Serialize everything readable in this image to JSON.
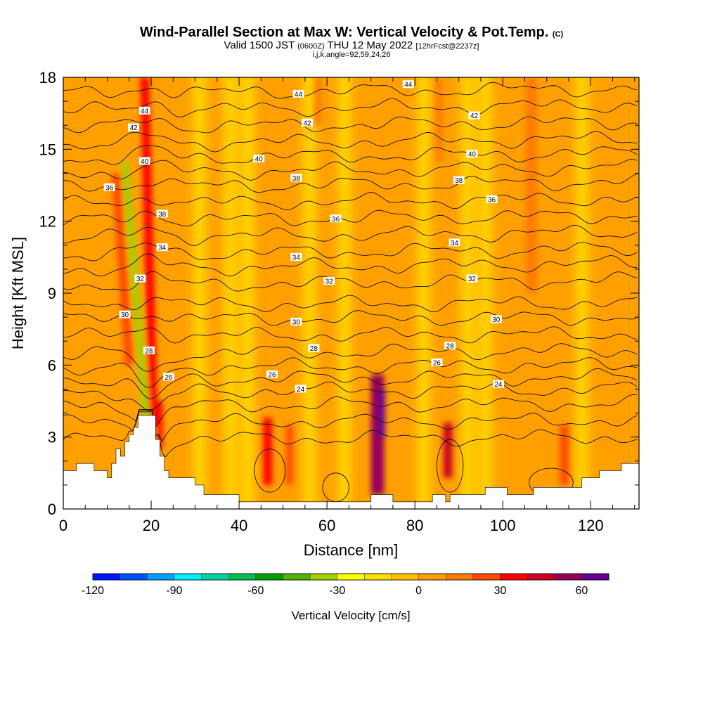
{
  "chart_data": {
    "type": "heatmap",
    "title": "Wind-Parallel Section at Max W: Vertical Velocity & Pot.Temp.",
    "title_mark": "(C)",
    "subtitle_pre": "Valid 1500 JST",
    "subtitle_utc": "(0600Z)",
    "subtitle_post": "THU 12 May 2022",
    "subtitle_fcst": "[12hrFcst@2237z]",
    "subtitle2": "i,j,k,angle=92,59,24,26",
    "xlabel": "Distance [nm]",
    "ylabel": "Height [Kft MSL]",
    "xlim": [
      0,
      131
    ],
    "ylim": [
      0,
      18
    ],
    "x_ticks": [
      0,
      20,
      40,
      60,
      80,
      100,
      120
    ],
    "x_tick_labels": [
      "0",
      "20",
      "40",
      "60",
      "80",
      "100",
      "120"
    ],
    "y_ticks": [
      0,
      3,
      6,
      9,
      12,
      15,
      18
    ],
    "y_tick_labels": [
      "0",
      "3",
      "6",
      "9",
      "12",
      "15",
      "18"
    ],
    "colorbar": {
      "title": "Vertical Velocity [cm/s]",
      "bounds": [
        -120,
        -110,
        -100,
        -90,
        -80,
        -70,
        -60,
        -50,
        -40,
        -30,
        -20,
        -10,
        0,
        10,
        20,
        30,
        40,
        50,
        60,
        70
      ],
      "colors": [
        "#0014ff",
        "#0050ff",
        "#00a0ff",
        "#00f0ff",
        "#00d2a0",
        "#00be50",
        "#00a000",
        "#50b400",
        "#a0d200",
        "#ffff00",
        "#ffe000",
        "#ffc000",
        "#ffa000",
        "#ff7a00",
        "#ff4a00",
        "#ff0000",
        "#c80020",
        "#96005a",
        "#640096"
      ],
      "tick_values": [
        -120,
        -90,
        -60,
        -30,
        0,
        30,
        60
      ],
      "tick_labels": [
        "-120",
        "-90",
        "-60",
        "-30",
        "0",
        "30",
        "60"
      ]
    },
    "background_velocity_cms": 5,
    "velocity_streaks": [
      {
        "x": 20.5,
        "y_bottom": 3.5,
        "y_top": 18.0,
        "w": 2.0,
        "lean_nm": -2.0,
        "value": 35
      },
      {
        "x": 19.0,
        "y_bottom": 3.5,
        "y_top": 14.5,
        "w": 1.6,
        "lean_nm": -5.0,
        "value": -40
      },
      {
        "x": 22.0,
        "y_bottom": 2.5,
        "y_top": 4.5,
        "w": 1.2,
        "lean_nm": 0,
        "value": 35
      },
      {
        "x": 15.0,
        "y_bottom": 6.0,
        "y_top": 14.0,
        "w": 2.0,
        "lean_nm": -3.0,
        "value": 20
      },
      {
        "x": 46.5,
        "y_bottom": 1.0,
        "y_top": 3.8,
        "w": 2.0,
        "lean_nm": 0,
        "value": 35
      },
      {
        "x": 51.5,
        "y_bottom": 1.0,
        "y_top": 3.5,
        "w": 1.6,
        "lean_nm": 0,
        "value": 20
      },
      {
        "x": 71.5,
        "y_bottom": 0.6,
        "y_top": 5.6,
        "w": 3.0,
        "lean_nm": 0,
        "value": 55
      },
      {
        "x": 72.5,
        "y_bottom": 3.0,
        "y_top": 5.0,
        "w": 1.4,
        "lean_nm": 0,
        "value": 65
      },
      {
        "x": 87.5,
        "y_bottom": 1.3,
        "y_top": 3.6,
        "w": 2.0,
        "lean_nm": 0,
        "value": 40
      },
      {
        "x": 106.5,
        "y_bottom": 9.0,
        "y_top": 18.0,
        "w": 2.5,
        "lean_nm": 0,
        "value": 12
      },
      {
        "x": 114.0,
        "y_bottom": 1.0,
        "y_top": 3.5,
        "w": 2.0,
        "lean_nm": 0,
        "value": 20
      },
      {
        "x": 85.5,
        "y_bottom": 14.5,
        "y_top": 18.0,
        "w": 1.5,
        "lean_nm": 0,
        "value": 15
      },
      {
        "x": 58.0,
        "y_bottom": 16.0,
        "y_top": 18.0,
        "w": 1.5,
        "lean_nm": 0,
        "value": 15
      }
    ],
    "updraft_columns_cms": [
      {
        "x": 31,
        "value": -20
      },
      {
        "x": 38,
        "value": -20
      },
      {
        "x": 42,
        "value": -20
      },
      {
        "x": 56,
        "value": -20
      },
      {
        "x": 64,
        "value": -20
      },
      {
        "x": 82,
        "value": -20
      },
      {
        "x": 92,
        "value": -20
      },
      {
        "x": 96,
        "value": -20
      },
      {
        "x": 118,
        "value": -20
      }
    ],
    "terrain_kft": [
      [
        0,
        1.6
      ],
      [
        3,
        1.6
      ],
      [
        3,
        1.9
      ],
      [
        7,
        1.9
      ],
      [
        7,
        1.6
      ],
      [
        10,
        1.6
      ],
      [
        10,
        1.3
      ],
      [
        11,
        1.3
      ],
      [
        11,
        1.9
      ],
      [
        12,
        1.9
      ],
      [
        12,
        2.5
      ],
      [
        13,
        2.5
      ],
      [
        13,
        2.2
      ],
      [
        14,
        2.2
      ],
      [
        14,
        2.8
      ],
      [
        15,
        2.8
      ],
      [
        15,
        3.1
      ],
      [
        16,
        3.1
      ],
      [
        16,
        3.4
      ],
      [
        17,
        3.4
      ],
      [
        17,
        3.9
      ],
      [
        21,
        3.9
      ],
      [
        21,
        2.9
      ],
      [
        22,
        2.9
      ],
      [
        22,
        2.2
      ],
      [
        23,
        2.2
      ],
      [
        23,
        1.6
      ],
      [
        24,
        1.6
      ],
      [
        24,
        1.3
      ],
      [
        30,
        1.3
      ],
      [
        30,
        1.0
      ],
      [
        32,
        1.0
      ],
      [
        32,
        0.6
      ],
      [
        40,
        0.6
      ],
      [
        40,
        0.3
      ],
      [
        70,
        0.3
      ],
      [
        70,
        0.6
      ],
      [
        75,
        0.6
      ],
      [
        75,
        0.3
      ],
      [
        84,
        0.3
      ],
      [
        84,
        0.6
      ],
      [
        87,
        0.6
      ],
      [
        87,
        0.3
      ],
      [
        88,
        0.3
      ],
      [
        88,
        0.6
      ],
      [
        96,
        0.6
      ],
      [
        96,
        0.9
      ],
      [
        101,
        0.9
      ],
      [
        101,
        0.6
      ],
      [
        107,
        0.6
      ],
      [
        107,
        0.9
      ],
      [
        118,
        0.9
      ],
      [
        118,
        1.3
      ],
      [
        122,
        1.3
      ],
      [
        122,
        1.6
      ],
      [
        127,
        1.6
      ],
      [
        127,
        1.9
      ],
      [
        131,
        1.9
      ]
    ],
    "theta_levels_K": [
      {
        "level": 22,
        "z": 2.9
      },
      {
        "level": 23,
        "z": 3.6
      },
      {
        "level": 24,
        "z": 4.3
      },
      {
        "level": 25,
        "z": 4.9
      },
      {
        "level": 26,
        "z": 5.4
      },
      {
        "level": 27,
        "z": 5.9
      },
      {
        "level": 28,
        "z": 6.5
      },
      {
        "level": 29,
        "z": 7.2
      },
      {
        "level": 30,
        "z": 7.9
      },
      {
        "level": 31,
        "z": 8.5
      },
      {
        "level": 32,
        "z": 9.3
      },
      {
        "level": 33,
        "z": 10.0
      },
      {
        "level": 34,
        "z": 10.6
      },
      {
        "level": 35,
        "z": 11.3
      },
      {
        "level": 36,
        "z": 12.0
      },
      {
        "level": 37,
        "z": 12.7
      },
      {
        "level": 38,
        "z": 13.4
      },
      {
        "level": 39,
        "z": 14.0
      },
      {
        "level": 40,
        "z": 14.6
      },
      {
        "level": 41,
        "z": 15.2
      },
      {
        "level": 42,
        "z": 15.9
      },
      {
        "level": 43,
        "z": 16.6
      },
      {
        "level": 44,
        "z": 17.3
      }
    ],
    "theta_labels": [
      {
        "text": "44",
        "x": 53.5,
        "y": 17.3
      },
      {
        "text": "44",
        "x": 78.5,
        "y": 17.7
      },
      {
        "text": "44",
        "x": 18.5,
        "y": 16.6
      },
      {
        "text": "42",
        "x": 16.0,
        "y": 15.9
      },
      {
        "text": "42",
        "x": 55.5,
        "y": 16.1
      },
      {
        "text": "42",
        "x": 93.5,
        "y": 16.4
      },
      {
        "text": "40",
        "x": 18.5,
        "y": 14.5
      },
      {
        "text": "40",
        "x": 44.5,
        "y": 14.6
      },
      {
        "text": "40",
        "x": 93.0,
        "y": 14.8
      },
      {
        "text": "38",
        "x": 53.0,
        "y": 13.8
      },
      {
        "text": "38",
        "x": 90.0,
        "y": 13.7
      },
      {
        "text": "38",
        "x": 22.5,
        "y": 12.3
      },
      {
        "text": "36",
        "x": 10.5,
        "y": 13.4
      },
      {
        "text": "36",
        "x": 62.0,
        "y": 12.1
      },
      {
        "text": "36",
        "x": 97.5,
        "y": 12.9
      },
      {
        "text": "34",
        "x": 22.5,
        "y": 10.9
      },
      {
        "text": "34",
        "x": 53.0,
        "y": 10.5
      },
      {
        "text": "34",
        "x": 89.0,
        "y": 11.1
      },
      {
        "text": "32",
        "x": 17.5,
        "y": 9.6
      },
      {
        "text": "32",
        "x": 60.5,
        "y": 9.5
      },
      {
        "text": "32",
        "x": 93.0,
        "y": 9.6
      },
      {
        "text": "30",
        "x": 14.0,
        "y": 8.1
      },
      {
        "text": "30",
        "x": 53.0,
        "y": 7.8
      },
      {
        "text": "30",
        "x": 98.5,
        "y": 7.9
      },
      {
        "text": "28",
        "x": 19.5,
        "y": 6.6
      },
      {
        "text": "28",
        "x": 57.0,
        "y": 6.7
      },
      {
        "text": "28",
        "x": 88.0,
        "y": 6.8
      },
      {
        "text": "26",
        "x": 24.0,
        "y": 5.5
      },
      {
        "text": "26",
        "x": 47.5,
        "y": 5.6
      },
      {
        "text": "26",
        "x": 85.0,
        "y": 6.1
      },
      {
        "text": "24",
        "x": 54.0,
        "y": 5.0
      },
      {
        "text": "24",
        "x": 99.0,
        "y": 5.2
      }
    ]
  }
}
